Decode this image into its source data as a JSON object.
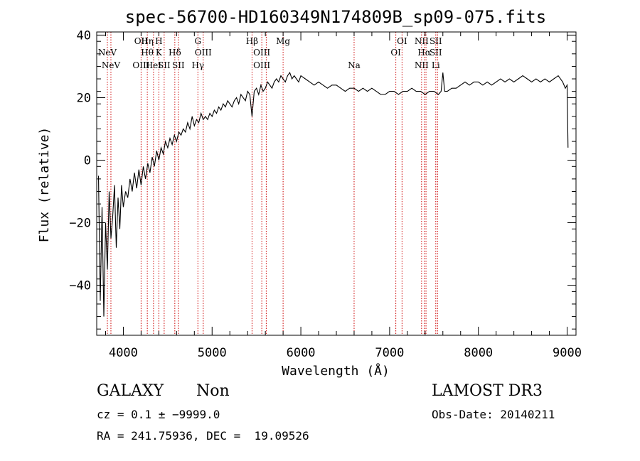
{
  "chart_data": {
    "type": "line",
    "title": "spec-56700-HD160349N174809B_sp09-075.fits",
    "xlabel": "Wavelength (Å)",
    "ylabel": "Flux (relative)",
    "xlim": [
      3700,
      9100
    ],
    "ylim": [
      -56,
      41
    ],
    "xticks": [
      "4000",
      "5000",
      "6000",
      "7000",
      "8000",
      "9000"
    ],
    "yticks": [
      "40",
      "20",
      "0",
      "−20",
      "−40"
    ],
    "xtick_values": [
      4000,
      5000,
      6000,
      7000,
      8000,
      9000
    ],
    "ytick_values": [
      40,
      20,
      0,
      -20,
      -40
    ],
    "grid": false,
    "series": [
      {
        "x": [
          3720,
          3740,
          3760,
          3780,
          3800,
          3820,
          3840,
          3860,
          3880,
          3900,
          3920,
          3940,
          3960,
          3980,
          4000,
          4025,
          4050,
          4075,
          4100,
          4125,
          4150,
          4175,
          4200,
          4225,
          4250,
          4275,
          4300,
          4325,
          4350,
          4375,
          4400,
          4425,
          4450,
          4475,
          4500,
          4525,
          4550,
          4575,
          4600,
          4625,
          4650,
          4675,
          4700,
          4725,
          4750,
          4775,
          4800,
          4825,
          4850,
          4875,
          4900,
          4925,
          4950,
          4975,
          5000,
          5025,
          5050,
          5075,
          5100,
          5125,
          5150,
          5175,
          5200,
          5225,
          5250,
          5275,
          5300,
          5325,
          5350,
          5375,
          5400,
          5425,
          5450,
          5475,
          5500,
          5525,
          5550,
          5575,
          5600,
          5625,
          5650,
          5675,
          5700,
          5725,
          5750,
          5775,
          5800,
          5825,
          5850,
          5875,
          5900,
          5925,
          5950,
          5975,
          6000,
          6050,
          6100,
          6150,
          6200,
          6250,
          6300,
          6350,
          6400,
          6450,
          6500,
          6550,
          6600,
          6650,
          6700,
          6750,
          6800,
          6850,
          6900,
          6950,
          7000,
          7050,
          7100,
          7150,
          7200,
          7250,
          7300,
          7350,
          7400,
          7450,
          7500,
          7550,
          7580,
          7600,
          7620,
          7650,
          7700,
          7750,
          7800,
          7850,
          7900,
          7950,
          8000,
          8050,
          8100,
          8150,
          8200,
          8250,
          8300,
          8350,
          8400,
          8450,
          8500,
          8550,
          8600,
          8650,
          8700,
          8750,
          8800,
          8850,
          8900,
          8950,
          8980,
          9000,
          9010
        ],
        "y": [
          -5,
          -45,
          -15,
          -50,
          -20,
          -35,
          -10,
          -25,
          -18,
          -8,
          -28,
          -12,
          -22,
          -8,
          -15,
          -10,
          -12,
          -6,
          -10,
          -4,
          -9,
          -3,
          -8,
          -2,
          -6,
          -1,
          -4,
          1,
          -2,
          3,
          0,
          4,
          2,
          6,
          4,
          7,
          5,
          8,
          6,
          9,
          8,
          10,
          9,
          12,
          10,
          14,
          11,
          13,
          12,
          15,
          13,
          14,
          13,
          15,
          14,
          16,
          15,
          17,
          16,
          18,
          17,
          19,
          18,
          17,
          19,
          20,
          18,
          21,
          20,
          19,
          22,
          21,
          14,
          22,
          23,
          21,
          24,
          22,
          23,
          25,
          24,
          23,
          25,
          26,
          25,
          27,
          26,
          25,
          27,
          28,
          26,
          27,
          26,
          25,
          27,
          26,
          25,
          24,
          25,
          24,
          23,
          24,
          24,
          23,
          22,
          23,
          23,
          22,
          23,
          22,
          23,
          22,
          21,
          21,
          22,
          22,
          21,
          22,
          22,
          23,
          22,
          22,
          21,
          22,
          22,
          21,
          22,
          28,
          22,
          22,
          23,
          23,
          24,
          25,
          24,
          25,
          25,
          24,
          25,
          24,
          25,
          26,
          25,
          26,
          25,
          26,
          27,
          26,
          25,
          26,
          25,
          26,
          25,
          26,
          27,
          25,
          23,
          24,
          4
        ]
      }
    ],
    "lines": [
      {
        "x": 3820,
        "labels": [
          {
            "text": "NeV",
            "row": 1
          }
        ]
      },
      {
        "x": 3860,
        "labels": [
          {
            "text": "NeV",
            "row": 2
          }
        ]
      },
      {
        "x": 4200,
        "labels": [
          {
            "text": "OII",
            "row": 0
          },
          {
            "text": "OIII",
            "row": 2
          }
        ]
      },
      {
        "x": 4270,
        "labels": [
          {
            "text": "Hη",
            "row": 0
          },
          {
            "text": "Hθ",
            "row": 1
          }
        ]
      },
      {
        "x": 4340,
        "labels": [
          {
            "text": "HeI",
            "row": 2
          }
        ]
      },
      {
        "x": 4400,
        "labels": [
          {
            "text": "H",
            "row": 0
          },
          {
            "text": "K",
            "row": 1
          }
        ]
      },
      {
        "x": 4460,
        "labels": [
          {
            "text": "SII",
            "row": 2
          }
        ]
      },
      {
        "x": 4580,
        "labels": [
          {
            "text": "Hδ",
            "row": 1
          }
        ]
      },
      {
        "x": 4620,
        "labels": [
          {
            "text": "SII",
            "row": 2
          }
        ]
      },
      {
        "x": 4840,
        "labels": [
          {
            "text": "G",
            "row": 0
          },
          {
            "text": "Hγ",
            "row": 2
          }
        ]
      },
      {
        "x": 4900,
        "labels": [
          {
            "text": "OIII",
            "row": 1
          }
        ]
      },
      {
        "x": 5450,
        "labels": [
          {
            "text": "Hβ",
            "row": 0
          }
        ]
      },
      {
        "x": 5560,
        "labels": [
          {
            "text": "OIII",
            "row": 1
          },
          {
            "text": "OIII",
            "row": 2
          }
        ]
      },
      {
        "x": 5610,
        "labels": []
      },
      {
        "x": 5800,
        "labels": [
          {
            "text": "Mg",
            "row": 0
          }
        ]
      },
      {
        "x": 6600,
        "labels": [
          {
            "text": "Na",
            "row": 2
          }
        ]
      },
      {
        "x": 7070,
        "labels": [
          {
            "text": "OI",
            "row": 1
          }
        ]
      },
      {
        "x": 7140,
        "labels": [
          {
            "text": "OI",
            "row": 0
          }
        ]
      },
      {
        "x": 7360,
        "labels": [
          {
            "text": "NII",
            "row": 0
          },
          {
            "text": "NII",
            "row": 2
          }
        ]
      },
      {
        "x": 7390,
        "labels": [
          {
            "text": "Hα",
            "row": 1
          }
        ]
      },
      {
        "x": 7410,
        "labels": []
      },
      {
        "x": 7520,
        "labels": [
          {
            "text": "SII",
            "row": 0
          },
          {
            "text": "SII",
            "row": 1
          },
          {
            "text": "Li",
            "row": 2
          }
        ]
      },
      {
        "x": 7540,
        "labels": []
      }
    ]
  },
  "info": {
    "class_label": "GALAXY",
    "subclass_label": "Non",
    "cz_text": "cz = 0.1 ± −9999.0",
    "radec_text": "RA = 241.75936, DEC =  19.09526",
    "survey": "LAMOST DR3",
    "obs_date": "Obs-Date: 20140211"
  },
  "colors": {
    "line_marker": "#cc0000",
    "spectrum": "#000000",
    "axes": "#000000"
  }
}
